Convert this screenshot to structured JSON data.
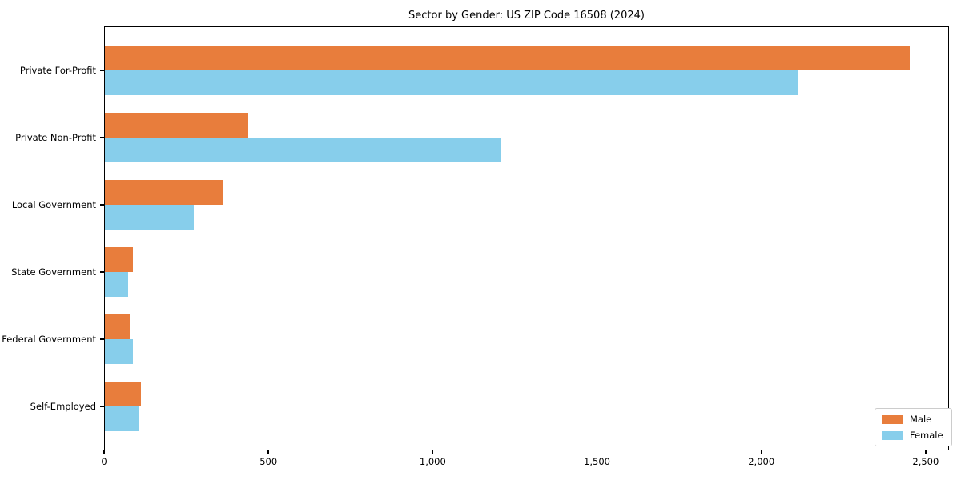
{
  "chart_data": {
    "type": "bar",
    "orientation": "horizontal",
    "title": "Sector by Gender: US ZIP Code 16508 (2024)",
    "xlabel": "",
    "ylabel": "",
    "categories": [
      "Private For-Profit",
      "Private Non-Profit",
      "Local Government",
      "State Government",
      "Federal Government",
      "Self-Employed"
    ],
    "series": [
      {
        "name": "Male",
        "color": "#E87D3C",
        "values": [
          2450,
          435,
          360,
          85,
          75,
          110
        ]
      },
      {
        "name": "Female",
        "color": "#87CEEB",
        "values": [
          2110,
          1205,
          270,
          70,
          85,
          105
        ]
      }
    ],
    "xlim": [
      0,
      2571
    ],
    "x_tick_values": [
      0,
      500,
      1000,
      1500,
      2000,
      2500
    ],
    "x_tick_labels": [
      "0",
      "500",
      "1,000",
      "1,500",
      "2,000",
      "2,500"
    ],
    "grid": false,
    "legend_position": "lower right",
    "colors": {
      "axis": "#000000",
      "legend_border": "#cccccc",
      "background": "#ffffff"
    }
  }
}
